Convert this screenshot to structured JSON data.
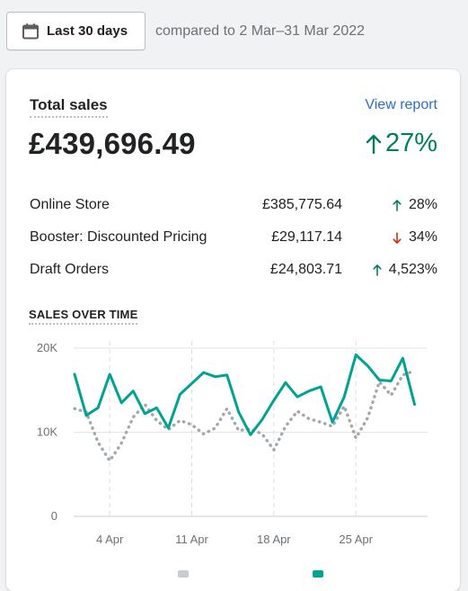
{
  "date_button": {
    "label": "Last 30 days",
    "icon": "calendar-icon"
  },
  "compare_text": "compared to 2 Mar–31 Mar 2022",
  "card": {
    "title": "Total sales",
    "view_report": "View report",
    "total": "£439,696.49",
    "change": "27%",
    "change_direction": "up",
    "rows": [
      {
        "name": "Online Store",
        "amount": "£385,775.64",
        "change": "28%",
        "direction": "up"
      },
      {
        "name": "Booster: Discounted Pricing",
        "amount": "£29,117.14",
        "change": "34%",
        "direction": "down"
      },
      {
        "name": "Draft Orders",
        "amount": "£24,803.71",
        "change": "4,523%",
        "direction": "up"
      }
    ],
    "section_title": "SALES OVER TIME"
  },
  "colors": {
    "up": "#007f5f",
    "down": "#d72c0d",
    "current": "#00a393",
    "previous": "#a3a8ad",
    "link": "#2c6ecb"
  },
  "chart_data": {
    "type": "line",
    "title": "SALES OVER TIME",
    "xlabel": "",
    "ylabel": "",
    "ylim": [
      0,
      20000
    ],
    "y_ticks": [
      {
        "v": 0,
        "label": "0"
      },
      {
        "v": 10000,
        "label": "10K"
      },
      {
        "v": 20000,
        "label": "20K"
      }
    ],
    "x_ticks": [
      {
        "i": 3,
        "label": "4 Apr"
      },
      {
        "i": 10,
        "label": "11 Apr"
      },
      {
        "i": 17,
        "label": "18 Apr"
      },
      {
        "i": 24,
        "label": "25 Apr"
      }
    ],
    "grid": "vertical-dashed-at-ticks",
    "series": [
      {
        "style": "solid",
        "color": "#00a393",
        "values": [
          16900,
          12000,
          12900,
          16900,
          13500,
          14900,
          12200,
          12900,
          10500,
          14500,
          15800,
          17100,
          16600,
          16800,
          12400,
          9700,
          11500,
          13800,
          15900,
          14200,
          14900,
          15400,
          11200,
          14200,
          19200,
          17900,
          16200,
          16100,
          18800,
          13300
        ]
      },
      {
        "style": "dotted",
        "color": "#a3a8ad",
        "values": [
          12800,
          12400,
          8800,
          6600,
          8700,
          11800,
          13300,
          11400,
          10300,
          11400,
          10900,
          9800,
          10500,
          12800,
          10200,
          10400,
          9800,
          7900,
          10700,
          12500,
          11600,
          11200,
          10700,
          13100,
          9300,
          11700,
          16000,
          14400,
          16800,
          17300
        ]
      }
    ]
  }
}
